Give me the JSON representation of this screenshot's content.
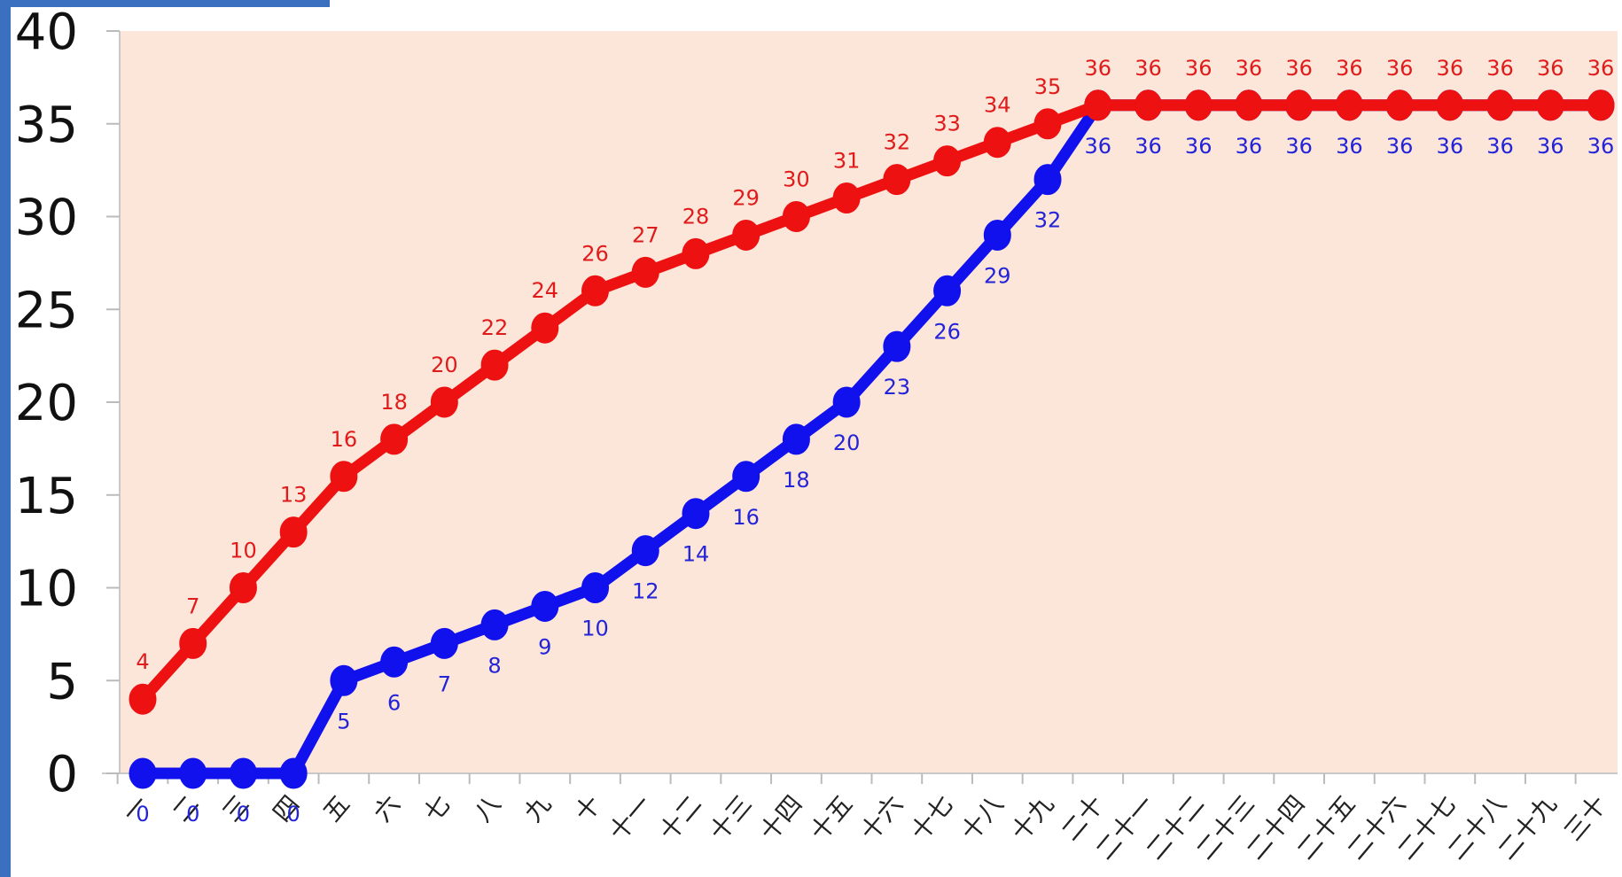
{
  "chart_data": {
    "type": "line",
    "title": "",
    "xlabel": "",
    "ylabel": "",
    "ylim": [
      0,
      40
    ],
    "yticks": [
      0,
      5,
      10,
      15,
      20,
      25,
      30,
      35,
      40
    ],
    "grid": false,
    "categories": [
      "一",
      "二",
      "三",
      "四",
      "五",
      "六",
      "七",
      "八",
      "九",
      "十",
      "十一",
      "十二",
      "十三",
      "十四",
      "十五",
      "十六",
      "十七",
      "十八",
      "十九",
      "二十",
      "二十一",
      "二十二",
      "二十三",
      "二十四",
      "二十五",
      "二十六",
      "二十七",
      "二十八",
      "二十九",
      "三十"
    ],
    "series": [
      {
        "color": "#ee1111",
        "labels_position": "above",
        "values": [
          4,
          7,
          10,
          13,
          16,
          18,
          20,
          22,
          24,
          26,
          27,
          28,
          29,
          30,
          31,
          32,
          33,
          34,
          35,
          36,
          36,
          36,
          36,
          36,
          36,
          36,
          36,
          36,
          36,
          36
        ]
      },
      {
        "color": "#1111ee",
        "labels_position": "below",
        "values": [
          0,
          0,
          0,
          0,
          5,
          6,
          7,
          8,
          9,
          10,
          12,
          14,
          16,
          18,
          20,
          23,
          26,
          29,
          32,
          36,
          36,
          36,
          36,
          36,
          36,
          36,
          36,
          36,
          36,
          36
        ]
      }
    ],
    "colors": {
      "plot_background": "#fce6d9",
      "left_bar": "#3b6fc0",
      "top_bar": "#3b6fc0"
    }
  }
}
